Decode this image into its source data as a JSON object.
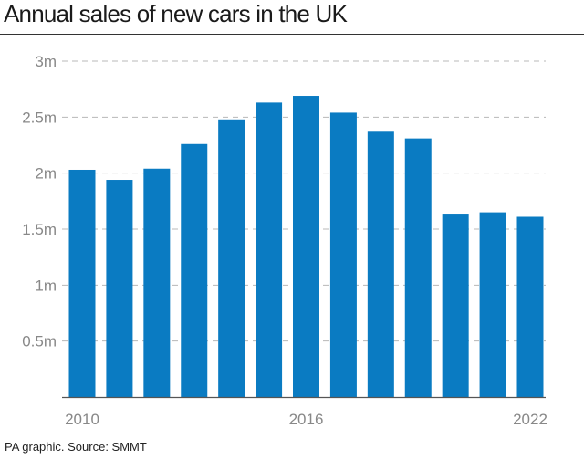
{
  "title": "Annual sales of new cars in the UK",
  "source": "PA graphic. Source: SMMT",
  "colors": {
    "bar": "#0a7bc2",
    "grid": "#b8b8b8",
    "axis": "#555555",
    "tick_text": "#888888"
  },
  "chart_data": {
    "type": "bar",
    "categories": [
      "2010",
      "2011",
      "2012",
      "2013",
      "2014",
      "2015",
      "2016",
      "2017",
      "2018",
      "2019",
      "2020",
      "2021",
      "2022"
    ],
    "values": [
      2.03,
      1.94,
      2.04,
      2.26,
      2.48,
      2.63,
      2.69,
      2.54,
      2.37,
      2.31,
      1.63,
      1.65,
      1.61
    ],
    "x_tick_labels": [
      "2010",
      "2016",
      "2022"
    ],
    "y_ticks": [
      {
        "value": 0.5,
        "label": "0.5m"
      },
      {
        "value": 1,
        "label": "1m"
      },
      {
        "value": 1.5,
        "label": "1.5m"
      },
      {
        "value": 2,
        "label": "2m"
      },
      {
        "value": 2.5,
        "label": "2.5m"
      },
      {
        "value": 3,
        "label": "3m"
      }
    ],
    "ylim": [
      0,
      3
    ],
    "unit": "millions",
    "grid": true,
    "legend": "none"
  }
}
